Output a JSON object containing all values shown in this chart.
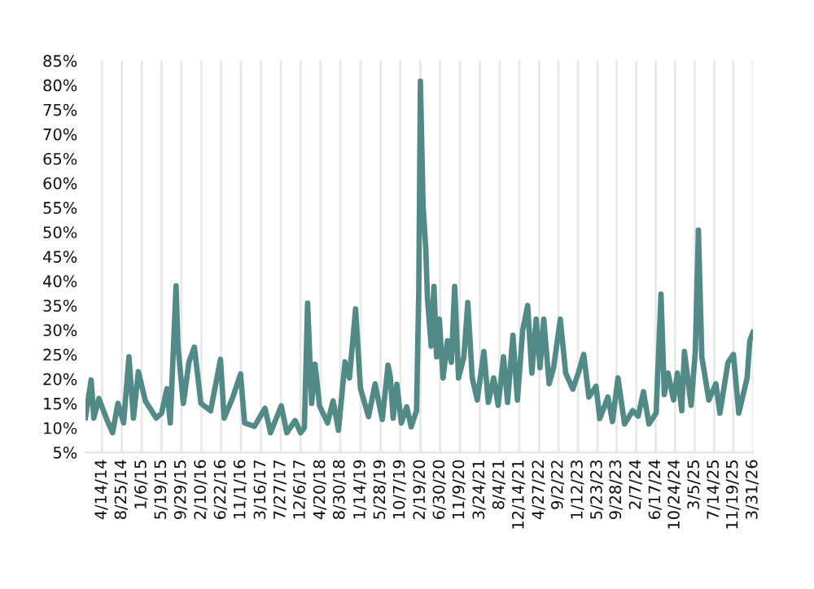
{
  "chart_data": {
    "type": "line",
    "color": "#528a88",
    "grid": "x",
    "marker": "none",
    "line_style": "solid",
    "ylim": [
      5,
      85
    ],
    "yticks": [
      {
        "value": 5,
        "label": "5%"
      },
      {
        "value": 10,
        "label": "10%"
      },
      {
        "value": 15,
        "label": "15%"
      },
      {
        "value": 20,
        "label": "20%"
      },
      {
        "value": 25,
        "label": "25%"
      },
      {
        "value": 30,
        "label": "30%"
      },
      {
        "value": 35,
        "label": "35%"
      },
      {
        "value": 40,
        "label": "40%"
      },
      {
        "value": 45,
        "label": "45%"
      },
      {
        "value": 50,
        "label": "50%"
      },
      {
        "value": 55,
        "label": "55%"
      },
      {
        "value": 60,
        "label": "60%"
      },
      {
        "value": 65,
        "label": "65%"
      },
      {
        "value": 70,
        "label": "70%"
      },
      {
        "value": 75,
        "label": "75%"
      },
      {
        "value": 80,
        "label": "80%"
      },
      {
        "value": 85,
        "label": "85%"
      }
    ],
    "xlim": [
      "2013-12-24",
      "2026-03-31"
    ],
    "xticks": [
      {
        "value": "2014-04-14",
        "label": "4/14/14"
      },
      {
        "value": "2014-08-25",
        "label": "8/25/14"
      },
      {
        "value": "2015-01-06",
        "label": "1/6/15"
      },
      {
        "value": "2015-05-19",
        "label": "5/19/15"
      },
      {
        "value": "2015-09-29",
        "label": "9/29/15"
      },
      {
        "value": "2016-02-10",
        "label": "2/10/16"
      },
      {
        "value": "2016-06-22",
        "label": "6/22/16"
      },
      {
        "value": "2016-11-01",
        "label": "11/1/16"
      },
      {
        "value": "2017-03-16",
        "label": "3/16/17"
      },
      {
        "value": "2017-07-27",
        "label": "7/27/17"
      },
      {
        "value": "2017-12-06",
        "label": "12/6/17"
      },
      {
        "value": "2018-04-20",
        "label": "4/20/18"
      },
      {
        "value": "2018-08-30",
        "label": "8/30/18"
      },
      {
        "value": "2019-01-14",
        "label": "1/14/19"
      },
      {
        "value": "2019-05-28",
        "label": "5/28/19"
      },
      {
        "value": "2019-10-07",
        "label": "10/7/19"
      },
      {
        "value": "2020-02-19",
        "label": "2/19/20"
      },
      {
        "value": "2020-06-30",
        "label": "6/30/20"
      },
      {
        "value": "2020-11-09",
        "label": "11/9/20"
      },
      {
        "value": "2021-03-24",
        "label": "3/24/21"
      },
      {
        "value": "2021-08-04",
        "label": "8/4/21"
      },
      {
        "value": "2021-12-14",
        "label": "12/14/21"
      },
      {
        "value": "2022-04-27",
        "label": "4/27/22"
      },
      {
        "value": "2022-09-02",
        "label": "9/2/22"
      },
      {
        "value": "2023-01-12",
        "label": "1/12/23"
      },
      {
        "value": "2023-05-23",
        "label": "5/23/23"
      },
      {
        "value": "2023-09-28",
        "label": "9/28/23"
      },
      {
        "value": "2024-02-07",
        "label": "2/7/24"
      },
      {
        "value": "2024-06-17",
        "label": "6/17/24"
      },
      {
        "value": "2024-10-24",
        "label": "10/24/24"
      },
      {
        "value": "2025-03-05",
        "label": "3/5/25"
      },
      {
        "value": "2025-07-14",
        "label": "7/14/25"
      },
      {
        "value": "2025-11-19",
        "label": "11/19/25"
      },
      {
        "value": "2026-03-31",
        "label": "3/31/26"
      }
    ],
    "x": [
      "2013-12-24",
      "2014-01-31",
      "2014-02-18",
      "2014-03-24",
      "2014-05-19",
      "2014-06-24",
      "2014-07-30",
      "2014-09-06",
      "2014-10-12",
      "2014-11-11",
      "2014-12-14",
      "2015-01-30",
      "2015-04-13",
      "2015-05-19",
      "2015-06-24",
      "2015-07-16",
      "2015-08-24",
      "2015-09-06",
      "2015-10-12",
      "2015-11-19",
      "2015-12-25",
      "2016-02-07",
      "2016-04-12",
      "2016-06-17",
      "2016-07-12",
      "2016-09-05",
      "2016-10-30",
      "2016-11-26",
      "2017-01-31",
      "2017-04-12",
      "2017-05-19",
      "2017-07-30",
      "2017-09-06",
      "2017-10-31",
      "2017-12-07",
      "2018-01-01",
      "2018-01-23",
      "2018-02-19",
      "2018-03-14",
      "2018-04-13",
      "2018-06-06",
      "2018-07-13",
      "2018-08-18",
      "2018-10-01",
      "2018-10-31",
      "2018-12-11",
      "2019-01-13",
      "2019-03-08",
      "2019-04-21",
      "2019-06-08",
      "2019-07-17",
      "2019-08-01",
      "2019-08-20",
      "2019-09-14",
      "2019-10-14",
      "2019-11-19",
      "2019-12-19",
      "2020-01-24",
      "2020-02-08",
      "2020-02-19",
      "2020-03-08",
      "2020-03-26",
      "2020-04-06",
      "2020-05-01",
      "2020-05-20",
      "2020-06-07",
      "2020-06-25",
      "2020-07-20",
      "2020-08-19",
      "2020-09-14",
      "2020-10-06",
      "2020-11-01",
      "2020-12-07",
      "2021-01-02",
      "2021-02-01",
      "2021-03-07",
      "2021-04-20",
      "2021-05-20",
      "2021-06-25",
      "2021-07-25",
      "2021-08-30",
      "2021-09-26",
      "2021-11-01",
      "2021-12-01",
      "2022-01-06",
      "2022-02-08",
      "2022-03-08",
      "2022-04-06",
      "2022-05-02",
      "2022-05-27",
      "2022-07-02",
      "2022-08-01",
      "2022-09-15",
      "2022-10-21",
      "2022-12-08",
      "2023-01-14",
      "2023-02-19",
      "2023-03-26",
      "2023-05-13",
      "2023-06-07",
      "2023-08-01",
      "2023-08-31",
      "2023-10-07",
      "2023-11-20",
      "2024-01-14",
      "2024-02-20",
      "2024-03-26",
      "2024-05-02",
      "2024-06-19",
      "2024-07-22",
      "2024-08-13",
      "2024-09-07",
      "2024-10-14",
      "2024-11-09",
      "2024-12-08",
      "2024-12-26",
      "2025-02-09",
      "2025-03-09",
      "2025-03-30",
      "2025-04-22",
      "2025-06-08",
      "2025-07-25",
      "2025-08-21",
      "2025-10-15",
      "2025-11-20",
      "2025-12-26",
      "2026-02-20",
      "2026-03-10",
      "2026-03-31"
    ],
    "values": [
      12.1,
      19.8,
      12,
      16,
      11.5,
      9,
      15,
      11,
      24.5,
      12,
      21.5,
      15.5,
      12,
      13,
      18,
      11,
      39,
      26.6,
      15,
      23.5,
      26.5,
      15,
      13.5,
      24,
      12,
      16,
      21,
      11,
      10.3,
      14,
      9,
      14.5,
      9,
      11.5,
      9,
      10,
      35.5,
      15,
      23,
      14.5,
      11,
      15.5,
      9.5,
      23.5,
      20.2,
      34.3,
      18,
      12.3,
      19,
      11.7,
      22.8,
      20.4,
      12,
      18.9,
      11,
      14.3,
      10.2,
      13.5,
      37.8,
      80.8,
      55.4,
      46.6,
      36.7,
      26.7,
      38.9,
      24.5,
      32.2,
      20.2,
      27.8,
      23.4,
      38.9,
      20.2,
      24.5,
      35.6,
      20.2,
      15.7,
      25.6,
      15.2,
      20.2,
      14.6,
      24.5,
      15.2,
      28.9,
      15.7,
      30,
      35,
      21.2,
      32.2,
      22.3,
      32.2,
      19,
      22.3,
      32.2,
      21.2,
      17.9,
      21.2,
      25,
      16.3,
      18.5,
      11.9,
      16.3,
      11.3,
      20.2,
      10.8,
      13.5,
      12.4,
      17.4,
      10.8,
      13,
      37.3,
      16.8,
      21.2,
      15.7,
      21.2,
      13.5,
      25.6,
      14.6,
      25.6,
      50.4,
      24.5,
      15.7,
      19,
      13,
      23.4,
      25,
      13,
      20.2,
      27.8,
      29.5
    ]
  }
}
